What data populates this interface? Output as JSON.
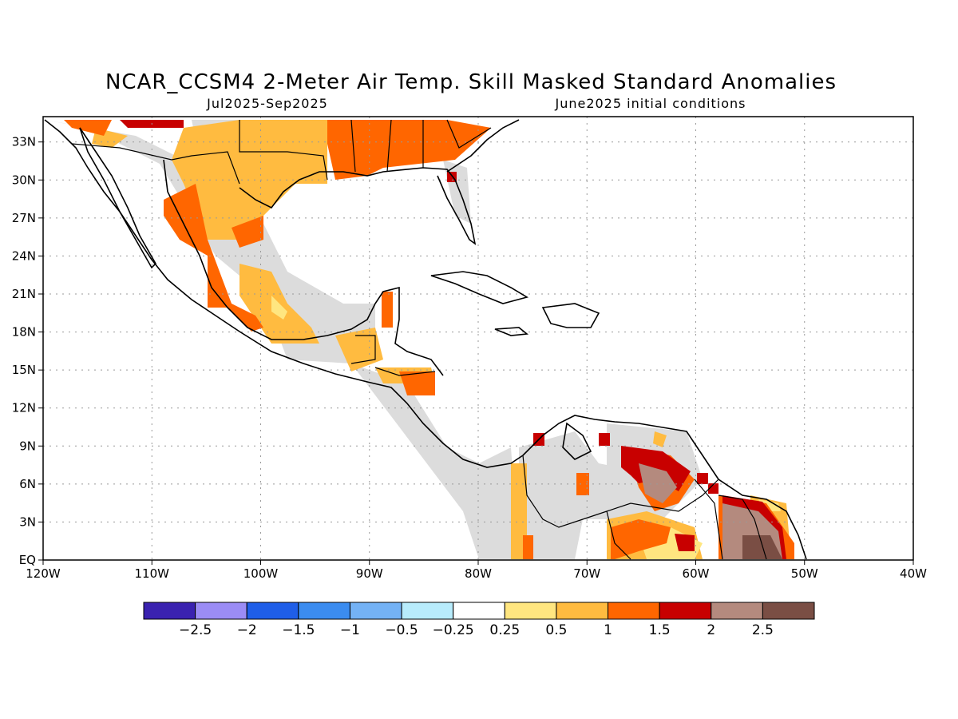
{
  "header": {
    "title": "NCAR_CCSM4 2-Meter Air Temp. Skill Masked Standard Anomalies",
    "period": "Jul2025-Sep2025",
    "init": "June2025 initial conditions"
  },
  "map": {
    "lon_range": [
      -120,
      -40
    ],
    "lat_range": [
      0,
      35
    ],
    "x_ticks": [
      "120W",
      "110W",
      "100W",
      "90W",
      "80W",
      "70W",
      "60W",
      "50W",
      "40W"
    ],
    "y_ticks": [
      "EQ",
      "3N",
      "6N",
      "9N",
      "12N",
      "15N",
      "18N",
      "21N",
      "24N",
      "27N",
      "30N",
      "33N"
    ],
    "grid": true
  },
  "colorbar": {
    "colors": [
      "#3a22b0",
      "#9b8cf5",
      "#1f5ee8",
      "#3b8cf0",
      "#74b2f5",
      "#b8ecfc",
      "#ffffff",
      "#ffe680",
      "#ffbb40",
      "#ff6600",
      "#c80000",
      "#b48a7e",
      "#7a4e44"
    ],
    "labels": [
      "-2.5",
      "-2",
      "-1.5",
      "-1",
      "-0.5",
      "-0.25",
      "0.25",
      "0.5",
      "1",
      "1.5",
      "2",
      "2.5"
    ]
  },
  "colors": {
    "not_significant": "#dcdcdc",
    "weak": "#ffe680",
    "moderate": "#ffbb40",
    "strong": "#ff6600",
    "very_strong": "#c80000",
    "extreme": "#b48a7e",
    "extreme_plus": "#7a4e44"
  }
}
